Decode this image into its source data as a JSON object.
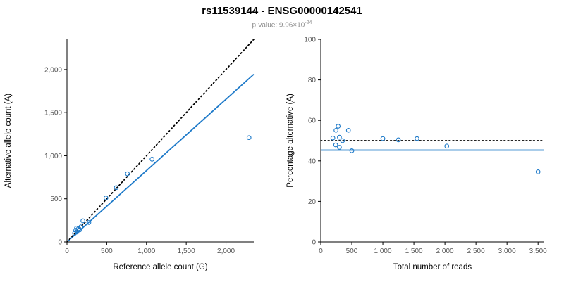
{
  "header": {
    "title": "rs11539144 - ENSG00000142541",
    "p_value_prefix": "p-value: ",
    "p_value_base": "9.96×10",
    "p_value_exponent": "-24"
  },
  "colors": {
    "accent": "#1e7ac9",
    "dotted_line": "#000000",
    "axis": "#000000",
    "tick_label": "#555555",
    "subtitle_gray": "#8c8c8c"
  },
  "chart_data": [
    {
      "type": "scatter",
      "name": "allele-counts-scatter",
      "xlabel": "Reference allele count (G)",
      "ylabel": "Alternative allele count (A)",
      "xlim": [
        0,
        2350
      ],
      "ylim": [
        0,
        2350
      ],
      "grid": false,
      "xticks": {
        "values": [
          0,
          500,
          1000,
          1500,
          2000
        ],
        "labels": [
          "0",
          "500",
          "1,000",
          "1,500",
          "2,000"
        ]
      },
      "yticks": {
        "values": [
          0,
          500,
          1000,
          1500,
          2000
        ],
        "labels": [
          "0",
          "500",
          "1,000",
          "1,500",
          "2,000"
        ]
      },
      "points": [
        [
          95,
          100
        ],
        [
          110,
          135
        ],
        [
          120,
          160
        ],
        [
          125,
          115
        ],
        [
          145,
          155
        ],
        [
          160,
          140
        ],
        [
          175,
          175
        ],
        [
          200,
          245
        ],
        [
          275,
          225
        ],
        [
          490,
          510
        ],
        [
          620,
          630
        ],
        [
          760,
          790
        ],
        [
          1070,
          960
        ],
        [
          2290,
          1210
        ]
      ],
      "lines": [
        {
          "name": "fit-line",
          "style": "solid",
          "color": "#1e7ac9",
          "x1": 0,
          "y1": 0,
          "x2": 2350,
          "y2": 1945,
          "width": 1.8
        },
        {
          "name": "identity-line",
          "style": "dotted",
          "color": "#000000",
          "x1": 0,
          "y1": 0,
          "x2": 2350,
          "y2": 2350,
          "width": 1.8
        }
      ]
    },
    {
      "type": "scatter",
      "name": "percentage-vs-reads-scatter",
      "xlabel": "Total number of reads",
      "ylabel": "Percentage alternative (A)",
      "xlim": [
        0,
        3600
      ],
      "ylim": [
        0,
        100
      ],
      "grid": false,
      "xticks": {
        "values": [
          0,
          500,
          1000,
          1500,
          2000,
          2500,
          3000,
          3500
        ],
        "labels": [
          "0",
          "500",
          "1,000",
          "1,500",
          "2,000",
          "2,500",
          "3,000",
          "3,500"
        ]
      },
      "yticks": {
        "values": [
          0,
          20,
          40,
          60,
          80,
          100
        ],
        "labels": [
          "0",
          "20",
          "40",
          "60",
          "80",
          "100"
        ]
      },
      "points": [
        [
          195,
          51.3
        ],
        [
          245,
          55.1
        ],
        [
          280,
          57.1
        ],
        [
          240,
          47.9
        ],
        [
          300,
          51.7
        ],
        [
          300,
          46.7
        ],
        [
          350,
          50.0
        ],
        [
          445,
          55.1
        ],
        [
          500,
          45.0
        ],
        [
          1000,
          51.0
        ],
        [
          1250,
          50.4
        ],
        [
          1550,
          51.0
        ],
        [
          2030,
          47.3
        ],
        [
          3500,
          34.6
        ]
      ],
      "lines": [
        {
          "name": "fit-line",
          "style": "solid",
          "color": "#1e7ac9",
          "x1": 0,
          "y1": 45.3,
          "x2": 3600,
          "y2": 45.3,
          "width": 1.8
        },
        {
          "name": "expected-50pct-line",
          "style": "dotted",
          "color": "#000000",
          "x1": 0,
          "y1": 50,
          "x2": 3600,
          "y2": 50,
          "width": 1.8
        }
      ]
    }
  ]
}
